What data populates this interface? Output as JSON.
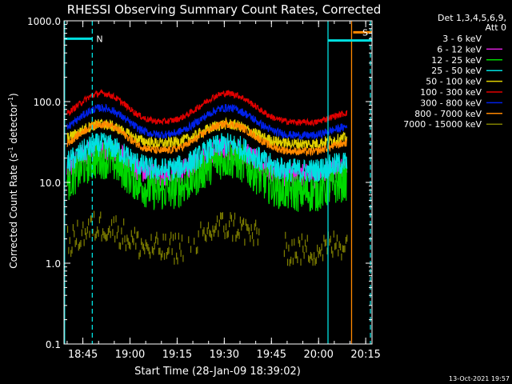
{
  "chart_data": {
    "type": "line",
    "title": "RHESSI Observing Summary Count Rates, Corrected",
    "xlabel": "Start Time (28-Jan-09 18:39:02)",
    "ylabel_main": "Corrected Count Rate (s",
    "ylabel_sup1": "-1",
    "ylabel_mid": " detector",
    "ylabel_sup2": "-1",
    "ylabel_end": ")",
    "y_scale": "log",
    "ylim": [
      0.1,
      1000
    ],
    "xlim_minutes": [
      0,
      98
    ],
    "x_ticks": [
      {
        "m": 6,
        "label": "18:45"
      },
      {
        "m": 21,
        "label": "19:00"
      },
      {
        "m": 36,
        "label": "19:15"
      },
      {
        "m": 51,
        "label": "19:30"
      },
      {
        "m": 66,
        "label": "19:45"
      },
      {
        "m": 81,
        "label": "20:00"
      },
      {
        "m": 96,
        "label": "20:15"
      }
    ],
    "y_ticks": [
      {
        "v": 1000,
        "label": "1000.0"
      },
      {
        "v": 100,
        "label": "100.0"
      },
      {
        "v": 10,
        "label": "10.0"
      },
      {
        "v": 1,
        "label": "1.0"
      },
      {
        "v": 0.1,
        "label": "0.1"
      }
    ],
    "legend_header": [
      "Det 1,3,4,5,6,9,",
      "Att 0"
    ],
    "footer_date": "13-Oct-2021 19:57",
    "series": [
      {
        "name": "3 - 6 keV",
        "color": "#000000",
        "base": 5.5,
        "amp": 2.8,
        "noise": 0.28
      },
      {
        "name": "6 - 12 keV",
        "color": "#e020e0",
        "base": 12,
        "amp": 2.2,
        "noise": 0.15
      },
      {
        "name": "12 - 25 keV",
        "color": "#00d800",
        "base": 7.5,
        "amp": 2.6,
        "noise": 0.25
      },
      {
        "name": "25 - 50 keV",
        "color": "#00e0e0",
        "base": 14,
        "amp": 2.1,
        "noise": 0.15
      },
      {
        "name": "50 - 100 keV",
        "color": "#e0d000",
        "base": 30,
        "amp": 1.75,
        "noise": 0.07
      },
      {
        "name": "100 - 300 keV",
        "color": "#e00000",
        "base": 55,
        "amp": 2.3,
        "noise": 0.04
      },
      {
        "name": "300 - 800 keV",
        "color": "#0020e8",
        "base": 38,
        "amp": 2.2,
        "noise": 0.05
      },
      {
        "name": "800 - 7000 keV",
        "color": "#ff8800",
        "base": 24,
        "amp": 2.2,
        "noise": 0.05
      },
      {
        "name": "7000 - 15000 keV",
        "color": "#808000",
        "base": 1.6,
        "amp": 2.0,
        "noise": 0
      }
    ],
    "flag_bars": [
      {
        "label": "N",
        "color": "#00e0e0",
        "m_start": 0,
        "m_end": 9,
        "y": 600
      },
      {
        "label": "S",
        "color": "#ff8800",
        "m_start": 92,
        "m_end": 98,
        "y": 720
      }
    ],
    "cyan_bar_right": {
      "m_start": 84,
      "m_end": 98,
      "y": 570
    },
    "vertical_lines": [
      {
        "m": 0.2,
        "color": "#00e0e0",
        "style": "solid"
      },
      {
        "m": 9,
        "color": "#00e0e0",
        "style": "dashed"
      },
      {
        "m": 84,
        "color": "#00e0e0",
        "style": "solid"
      },
      {
        "m": 91.5,
        "color": "#ff8800",
        "style": "solid"
      },
      {
        "m": 97.5,
        "color": "#00e0e0",
        "style": "dashed"
      }
    ]
  }
}
